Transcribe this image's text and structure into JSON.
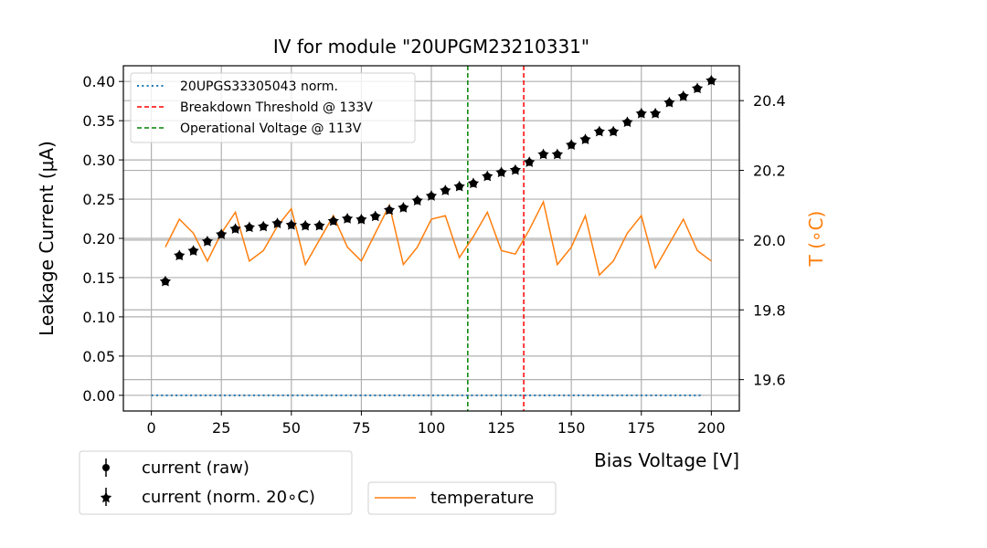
{
  "chart_data": {
    "type": "scatter",
    "title": "IV for module \"20UPGM23210331\"",
    "xlabel": "Bias Voltage [V]",
    "ylabel": "Leakage Current (μA)",
    "y2label": "T ($^\\circ$C)",
    "y2label_display": "T (∘C)",
    "xlim": [
      -10,
      210
    ],
    "ylim": [
      -0.02,
      0.42
    ],
    "y2lim": [
      19.51,
      20.5
    ],
    "grid": true,
    "xticks": [
      0,
      25,
      50,
      75,
      100,
      125,
      150,
      175,
      200
    ],
    "xtick_labels": [
      "0",
      "25",
      "50",
      "75",
      "100",
      "125",
      "150",
      "175",
      "200"
    ],
    "yticks": [
      0.0,
      0.05,
      0.1,
      0.15,
      0.2,
      0.25,
      0.3,
      0.35,
      0.4
    ],
    "ytick_labels": [
      "0.00",
      "0.05",
      "0.10",
      "0.15",
      "0.20",
      "0.25",
      "0.30",
      "0.35",
      "0.40"
    ],
    "y2ticks": [
      19.6,
      19.8,
      20.0,
      20.2,
      20.4
    ],
    "y2tick_labels": [
      "19.6",
      "19.8",
      "20.0",
      "20.2",
      "20.4"
    ],
    "x": [
      5,
      10,
      15,
      20,
      25,
      30,
      35,
      40,
      45,
      50,
      55,
      60,
      65,
      70,
      75,
      80,
      85,
      90,
      95,
      100,
      105,
      110,
      115,
      120,
      125,
      130,
      135,
      140,
      145,
      150,
      155,
      160,
      165,
      170,
      175,
      180,
      185,
      190,
      195,
      200
    ],
    "series": [
      {
        "name": "current (raw)",
        "axis": "left",
        "style": "errorbar-circle",
        "color": "#000000",
        "values": [
          0.145,
          0.178,
          0.184,
          0.196,
          0.205,
          0.212,
          0.214,
          0.215,
          0.219,
          0.217,
          0.216,
          0.216,
          0.222,
          0.225,
          0.224,
          0.228,
          0.236,
          0.239,
          0.248,
          0.254,
          0.261,
          0.266,
          0.27,
          0.279,
          0.284,
          0.287,
          0.297,
          0.307,
          0.307,
          0.319,
          0.326,
          0.336,
          0.336,
          0.348,
          0.359,
          0.359,
          0.373,
          0.381,
          0.391,
          0.401
        ]
      },
      {
        "name": "current (norm. 20∘C)",
        "axis": "left",
        "style": "errorbar-star",
        "color": "#000000",
        "values": [
          0.145,
          0.178,
          0.184,
          0.196,
          0.205,
          0.212,
          0.214,
          0.215,
          0.219,
          0.217,
          0.216,
          0.216,
          0.222,
          0.225,
          0.224,
          0.228,
          0.236,
          0.239,
          0.248,
          0.254,
          0.261,
          0.266,
          0.27,
          0.279,
          0.284,
          0.287,
          0.297,
          0.307,
          0.307,
          0.319,
          0.326,
          0.336,
          0.336,
          0.348,
          0.359,
          0.359,
          0.373,
          0.381,
          0.391,
          0.401
        ]
      },
      {
        "name": "temperature",
        "axis": "right",
        "style": "line",
        "color": "#ff7f0e",
        "values": [
          19.98,
          20.06,
          20.02,
          19.94,
          20.02,
          20.08,
          19.94,
          19.97,
          20.04,
          20.09,
          19.93,
          20.0,
          20.07,
          19.98,
          19.94,
          20.02,
          20.1,
          19.93,
          19.98,
          20.06,
          20.07,
          19.95,
          20.01,
          20.08,
          19.97,
          19.96,
          20.03,
          20.11,
          19.93,
          19.98,
          20.07,
          19.9,
          19.94,
          20.02,
          20.07,
          19.92,
          19.99,
          20.06,
          19.97,
          19.94
        ]
      },
      {
        "name": "20UPGS33305043 norm.",
        "axis": "left",
        "style": "dotted-line",
        "color": "#1f77b4",
        "x_range": [
          0,
          197
        ],
        "values_constant": 0.0
      }
    ],
    "vlines": [
      {
        "name": "Breakdown Threshold @ 133V",
        "x": 133,
        "color": "#ff0000",
        "style": "dashed"
      },
      {
        "name": "Operational Voltage @ 113V",
        "x": 113,
        "color": "#008000",
        "style": "dashed"
      }
    ],
    "legends": [
      {
        "placement": "top-left inside",
        "entries": [
          "20UPGS33305043 norm.",
          "Breakdown Threshold @ 133V",
          "Operational Voltage @ 113V"
        ]
      },
      {
        "placement": "bottom-left below axes",
        "entries": [
          "current (raw)",
          "current (norm. 20∘C)"
        ]
      },
      {
        "placement": "bottom-center below axes",
        "entries": [
          "temperature"
        ]
      }
    ]
  },
  "colors": {
    "grid": "#b0b0b0",
    "axis": "#000000",
    "temperature": "#ff7f0e",
    "reference": "#1f77b4",
    "breakdown": "#ff0000",
    "operational": "#008000"
  }
}
